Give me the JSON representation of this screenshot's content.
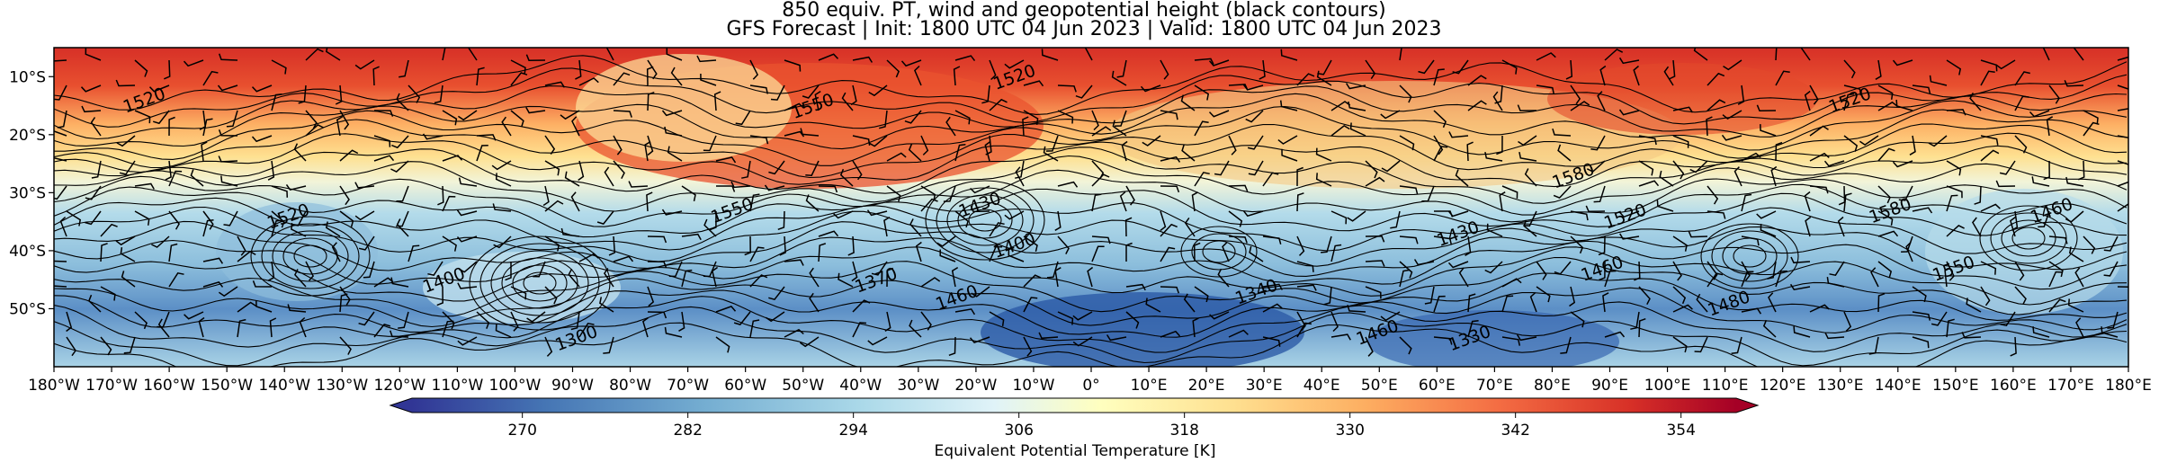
{
  "title": {
    "line1": "850 equiv. PT, wind and geopotential height (black contours)",
    "line2": "GFS Forecast | Init: 1800 UTC 04 Jun 2023 | Valid: 1800 UTC 04 Jun 2023"
  },
  "map": {
    "lon_range": [
      -180,
      180
    ],
    "lat_range": [
      -60,
      -5
    ],
    "lat_ticks": [
      "10°S",
      "20°S",
      "30°S",
      "40°S",
      "50°S"
    ],
    "lat_values": [
      -10,
      -20,
      -30,
      -40,
      -50
    ],
    "lon_ticks": [
      "180°W",
      "170°W",
      "160°W",
      "150°W",
      "140°W",
      "130°W",
      "120°W",
      "110°W",
      "100°W",
      "90°W",
      "80°W",
      "70°W",
      "60°W",
      "50°W",
      "40°W",
      "30°W",
      "20°W",
      "10°W",
      "0°",
      "10°E",
      "20°E",
      "30°E",
      "40°E",
      "50°E",
      "60°E",
      "70°E",
      "80°E",
      "90°E",
      "100°E",
      "110°E",
      "120°E",
      "130°E",
      "140°E",
      "150°E",
      "160°E",
      "170°E",
      "180°E"
    ],
    "contour_labels": [
      {
        "text": "1520",
        "lon": -164,
        "lat": -15
      },
      {
        "text": "1550",
        "lon": -48,
        "lat": -16
      },
      {
        "text": "1520",
        "lon": -13,
        "lat": -11
      },
      {
        "text": "1580",
        "lon": 84,
        "lat": -28
      },
      {
        "text": "1520",
        "lon": -139,
        "lat": -35
      },
      {
        "text": "1550",
        "lon": -62,
        "lat": -34
      },
      {
        "text": "1430",
        "lon": -19,
        "lat": -33
      },
      {
        "text": "1400",
        "lon": -13,
        "lat": -40
      },
      {
        "text": "1460",
        "lon": -23,
        "lat": -49
      },
      {
        "text": "1370",
        "lon": -37,
        "lat": -46
      },
      {
        "text": "1340",
        "lon": 29,
        "lat": -48
      },
      {
        "text": "1400",
        "lon": -112,
        "lat": -46
      },
      {
        "text": "1300",
        "lon": -89,
        "lat": -56
      },
      {
        "text": "1460",
        "lon": 50,
        "lat": -55
      },
      {
        "text": "1430",
        "lon": 64,
        "lat": -38
      },
      {
        "text": "1330",
        "lon": 66,
        "lat": -56
      },
      {
        "text": "1460",
        "lon": 89,
        "lat": -44
      },
      {
        "text": "1520",
        "lon": 93,
        "lat": -35
      },
      {
        "text": "1480",
        "lon": 111,
        "lat": -50
      },
      {
        "text": "1580",
        "lon": 139,
        "lat": -34
      },
      {
        "text": "1550",
        "lon": 150,
        "lat": -44
      },
      {
        "text": "1460",
        "lon": 167,
        "lat": -34
      },
      {
        "text": "1520",
        "lon": 132,
        "lat": -15
      }
    ]
  },
  "colorbar": {
    "label": "Equivalent Potential Temperature [K]",
    "ticks": [
      "270",
      "282",
      "294",
      "306",
      "318",
      "330",
      "342",
      "354"
    ],
    "tick_values": [
      270,
      282,
      294,
      306,
      318,
      330,
      342,
      354
    ],
    "range": [
      262,
      358
    ],
    "colors": [
      "#313695",
      "#4575b4",
      "#74add1",
      "#abd9e9",
      "#e0f3f8",
      "#ffffbf",
      "#fee090",
      "#fdae61",
      "#f46d43",
      "#d73027",
      "#a50026"
    ]
  },
  "colors": {
    "cold": "#3a5fa8",
    "cool": "#a9d2e5",
    "neutral": "#f7f2c8",
    "warm": "#fdc27a",
    "hot": "#d7301f"
  }
}
